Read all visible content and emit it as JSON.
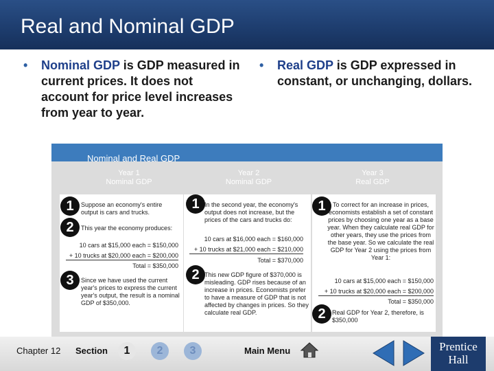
{
  "slide": {
    "title": "Real and Nominal GDP"
  },
  "bullets": {
    "left": {
      "term": "Nominal GDP",
      "rest": " is GDP measured in current prices. It does not account for price level increases from year to year."
    },
    "right": {
      "term": "Real GDP",
      "rest": " is GDP expressed in constant, or unchanging, dollars."
    }
  },
  "figure": {
    "title": "Nominal and Real GDP",
    "columns": [
      {
        "heading1": "Year 1",
        "heading2": "Nominal GDP"
      },
      {
        "heading1": "Year 2",
        "heading2": "Nominal GDP"
      },
      {
        "heading1": "Year 3",
        "heading2": "Real GDP"
      }
    ],
    "col1": {
      "step1": "Suppose an economy's entire output is cars and trucks.",
      "step2": "This year the economy produces:",
      "line1": "10 cars at $15,000 each = $150,000",
      "line2": "+ 10 trucks at $20,000 each = $200,000",
      "total": "Total = $350,000",
      "step3": "Since we have used the current year's prices to express the current year's output, the result is a nominal GDP of $350,000."
    },
    "col2": {
      "step1": "In the second year, the economy's output does not increase, but the prices of the cars and trucks do:",
      "line1": "10 cars at $16,000 each = $160,000",
      "line2": "+ 10 trucks at $21,000 each = $210,000",
      "total": "Total = $370,000",
      "step2": "This new GDP figure of $370,000 is misleading. GDP rises because of an increase in prices. Economists prefer to have a measure of GDP that is not affected by changes in prices. So they calculate real GDP."
    },
    "col3": {
      "step1": "To correct for an increase in prices, economists establish a set of constant prices by choosing one year as a base year. When they calculate real GDP for other years, they use the prices from the base year. So we calculate the real GDP for Year 2 using the prices from Year 1:",
      "line1": "10 cars at $15,000 each = $150,000",
      "line2": "+ 10 trucks at $20,000 each = $200,000",
      "total": "Total = $350,000",
      "step2": "Real GDP for Year 2, therefore, is $350,000"
    },
    "numbers": [
      "1",
      "2",
      "3"
    ]
  },
  "footer": {
    "chapter": "Chapter 12",
    "section_label": "Section",
    "section_buttons": [
      "1",
      "2",
      "3"
    ],
    "main_menu": "Main Menu",
    "brand_line1": "Prentice",
    "brand_line2": "Hall"
  },
  "colors": {
    "title_bar": "#1d3c6d",
    "panel_header": "#3d7cbd",
    "term": "#1e3f8a"
  },
  "icons": [
    "home-icon",
    "back-arrow-icon",
    "forward-arrow-icon"
  ]
}
